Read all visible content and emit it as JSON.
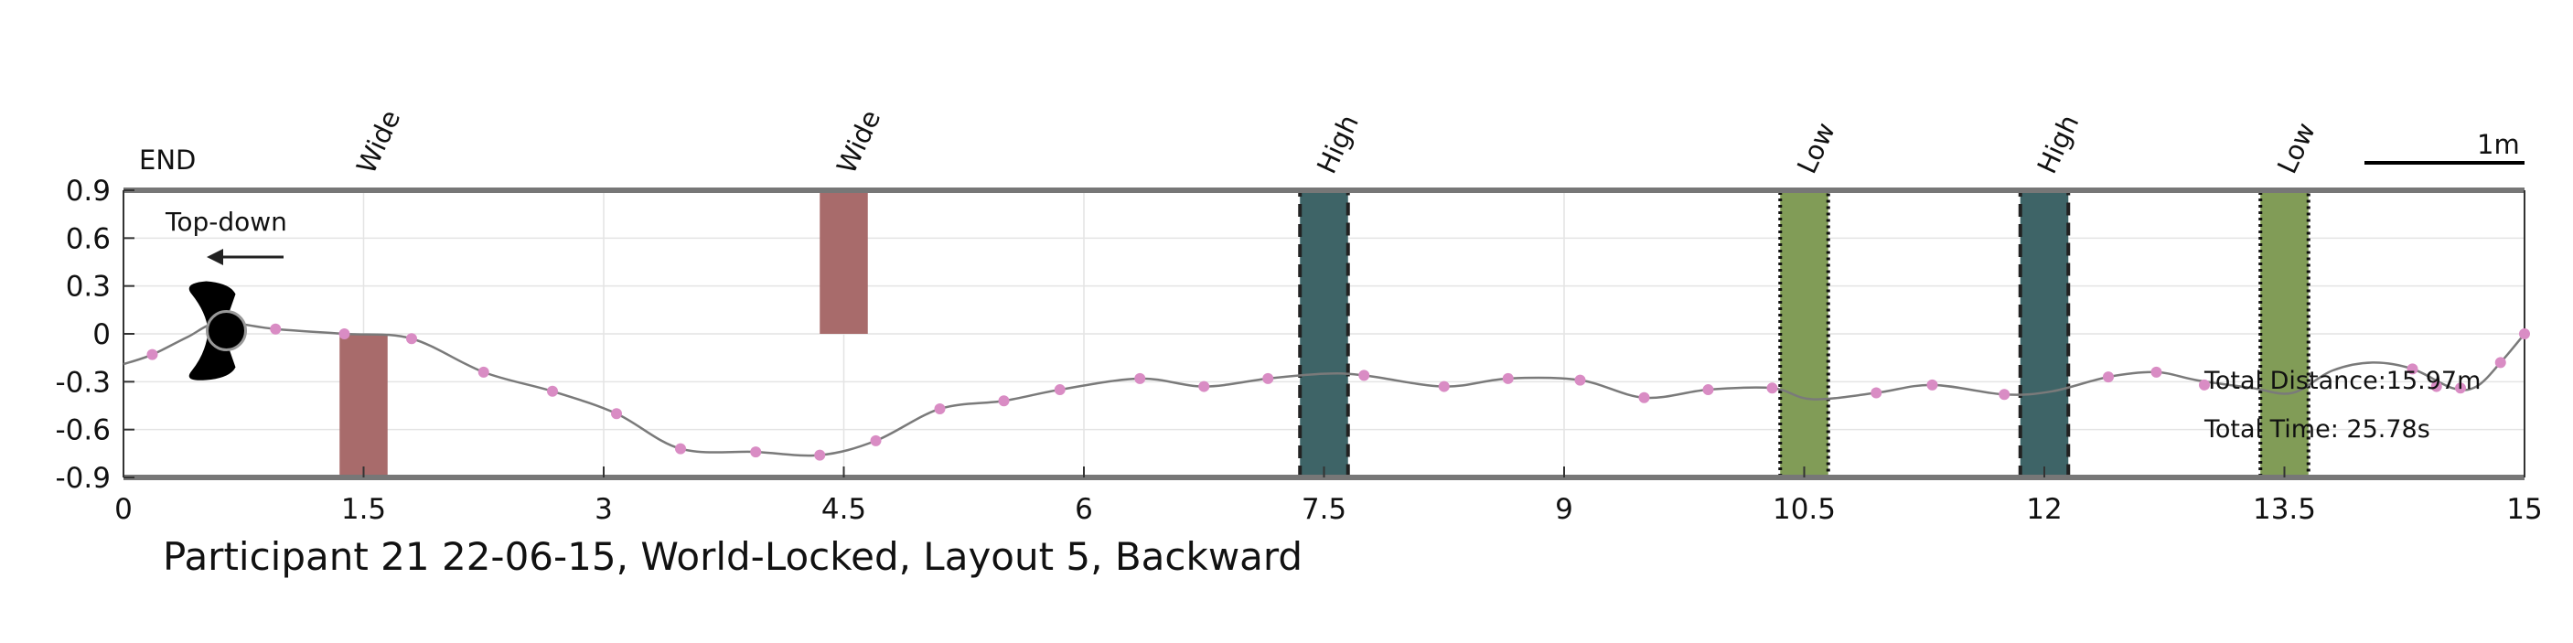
{
  "chart_data": {
    "type": "line",
    "title": "Participant 21 22-06-15, World-Locked, Layout 5, Backward",
    "xlim": [
      0,
      15
    ],
    "ylim": [
      -0.9,
      0.9
    ],
    "x_ticks": [
      "0",
      "1.5",
      "3",
      "4.5",
      "6",
      "7.5",
      "9",
      "10.5",
      "12",
      "13.5",
      "15"
    ],
    "y_ticks": [
      "0.9",
      "0.6",
      "0.3",
      "0",
      "-0.3",
      "-0.6",
      "-0.9"
    ],
    "grid": true,
    "end_label": "END",
    "scale_bar_label": "1m",
    "direction_label": "Top-down",
    "stats": {
      "distance": "Total Distance:15.97m",
      "time": "Total Time: 25.78s"
    },
    "obstacles": [
      {
        "label": "Wide",
        "x_start": 1.35,
        "x_end": 1.65,
        "y_start": -0.9,
        "y_end": 0.0,
        "color": "#a86b6b",
        "border": "none"
      },
      {
        "label": "Wide",
        "x_start": 4.35,
        "x_end": 4.65,
        "y_start": 0.0,
        "y_end": 0.9,
        "color": "#a86b6b",
        "border": "none"
      },
      {
        "label": "High",
        "x_start": 7.35,
        "x_end": 7.65,
        "y_start": -0.9,
        "y_end": 0.9,
        "color": "#3e6467",
        "border": "dashed"
      },
      {
        "label": "Low",
        "x_start": 10.35,
        "x_end": 10.65,
        "y_start": -0.9,
        "y_end": 0.9,
        "color": "#819c57",
        "border": "dotted"
      },
      {
        "label": "High",
        "x_start": 11.85,
        "x_end": 12.15,
        "y_start": -0.9,
        "y_end": 0.9,
        "color": "#3e6467",
        "border": "dashed"
      },
      {
        "label": "Low",
        "x_start": 13.35,
        "x_end": 13.65,
        "y_start": -0.9,
        "y_end": 0.9,
        "color": "#819c57",
        "border": "dotted"
      }
    ],
    "path": {
      "color": "#7a7a7a",
      "marker_color": "#d98cc4",
      "x": [
        0.0,
        0.18,
        0.4,
        0.6,
        0.95,
        1.38,
        1.8,
        2.25,
        2.68,
        3.08,
        3.48,
        3.95,
        4.35,
        4.7,
        5.1,
        5.5,
        5.85,
        6.35,
        6.75,
        7.15,
        7.5,
        7.75,
        8.25,
        8.65,
        9.1,
        9.5,
        9.9,
        10.3,
        10.55,
        10.95,
        11.3,
        11.75,
        12.05,
        12.4,
        12.7,
        12.95,
        13.3,
        13.55,
        13.8,
        14.05,
        14.3,
        14.55,
        14.7,
        14.85,
        15.0
      ],
      "y": [
        -0.19,
        -0.13,
        -0.02,
        0.07,
        0.03,
        0.0,
        -0.03,
        -0.24,
        -0.36,
        -0.5,
        -0.72,
        -0.74,
        -0.76,
        -0.67,
        -0.47,
        -0.42,
        -0.35,
        -0.28,
        -0.33,
        -0.28,
        -0.25,
        -0.26,
        -0.33,
        -0.28,
        -0.29,
        -0.4,
        -0.35,
        -0.34,
        -0.41,
        -0.37,
        -0.32,
        -0.38,
        -0.36,
        -0.27,
        -0.24,
        -0.29,
        -0.34,
        -0.37,
        -0.23,
        -0.18,
        -0.22,
        -0.34,
        -0.33,
        -0.18,
        0.0
      ],
      "markers_x": [
        0.18,
        0.95,
        1.38,
        1.8,
        2.25,
        2.68,
        3.08,
        3.48,
        3.95,
        4.35,
        4.7,
        5.1,
        5.5,
        5.85,
        6.35,
        6.75,
        7.15,
        7.75,
        8.25,
        8.65,
        9.1,
        9.5,
        9.9,
        10.3,
        10.95,
        11.3,
        11.75,
        12.4,
        12.7,
        13.0,
        14.3,
        14.45,
        14.6,
        14.85,
        15.0
      ],
      "markers_y": [
        -0.13,
        0.03,
        0.0,
        -0.03,
        -0.24,
        -0.36,
        -0.5,
        -0.72,
        -0.74,
        -0.76,
        -0.67,
        -0.47,
        -0.42,
        -0.35,
        -0.28,
        -0.33,
        -0.28,
        -0.26,
        -0.33,
        -0.28,
        -0.29,
        -0.4,
        -0.35,
        -0.34,
        -0.37,
        -0.32,
        -0.38,
        -0.27,
        -0.24,
        -0.32,
        -0.22,
        -0.33,
        -0.34,
        -0.18,
        0.0
      ]
    },
    "walker": {
      "x": 0.62,
      "y": 0.02
    }
  }
}
